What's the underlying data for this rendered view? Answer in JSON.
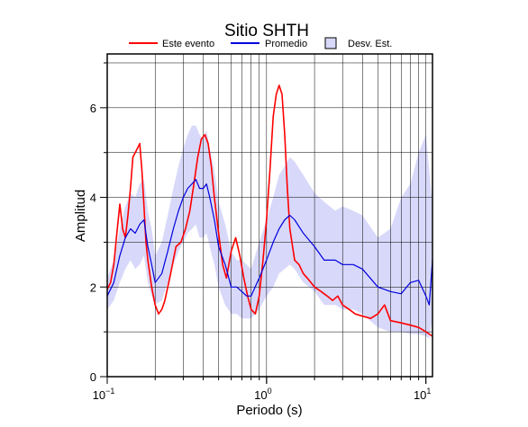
{
  "chart_data": {
    "type": "line",
    "title": "Sitio SHTH",
    "xlabel": "Periodo (s)",
    "ylabel": "Amplitud",
    "x_scale": "log",
    "xlim": [
      0.1,
      11
    ],
    "ylim": [
      0,
      7.2
    ],
    "grid": true,
    "legend_position": "top",
    "x_ticks": [
      {
        "value": 0.1,
        "base": "10",
        "exp": "−1"
      },
      {
        "value": 1,
        "base": "10",
        "exp": "0"
      },
      {
        "value": 10,
        "base": "10",
        "exp": "1"
      }
    ],
    "y_ticks": [
      {
        "value": 0,
        "label": "0"
      },
      {
        "value": 2,
        "label": "2"
      },
      {
        "value": 4,
        "label": "4"
      },
      {
        "value": 6,
        "label": "6"
      }
    ],
    "legend": [
      {
        "label": "Este evento",
        "kind": "line",
        "color": "#ff0000"
      },
      {
        "label": "Promedio",
        "kind": "line",
        "color": "#0000dd"
      },
      {
        "label": "Desv. Est.",
        "kind": "fill",
        "color": "#d8d8fa"
      }
    ],
    "series": [
      {
        "name": "Este evento",
        "color": "#ff0000",
        "x": [
          0.1,
          0.105,
          0.11,
          0.115,
          0.12,
          0.125,
          0.13,
          0.135,
          0.14,
          0.145,
          0.15,
          0.155,
          0.16,
          0.165,
          0.17,
          0.175,
          0.18,
          0.19,
          0.2,
          0.21,
          0.22,
          0.23,
          0.25,
          0.27,
          0.29,
          0.31,
          0.33,
          0.35,
          0.37,
          0.39,
          0.41,
          0.43,
          0.45,
          0.47,
          0.5,
          0.53,
          0.56,
          0.6,
          0.64,
          0.68,
          0.72,
          0.76,
          0.8,
          0.85,
          0.9,
          0.95,
          1.0,
          1.05,
          1.1,
          1.15,
          1.2,
          1.25,
          1.3,
          1.35,
          1.4,
          1.5,
          1.6,
          1.7,
          1.8,
          2.0,
          2.2,
          2.4,
          2.6,
          2.8,
          3.0,
          3.3,
          3.6,
          4.0,
          4.5,
          5.0,
          5.5,
          6.0,
          7.0,
          8.0,
          9.0,
          10.0,
          11.0
        ],
        "values": [
          1.95,
          2.1,
          2.5,
          3.2,
          3.85,
          3.3,
          3.1,
          3.6,
          4.2,
          4.9,
          5.0,
          5.1,
          5.2,
          4.6,
          3.8,
          3.0,
          2.6,
          2.0,
          1.6,
          1.4,
          1.5,
          1.7,
          2.3,
          2.9,
          3.0,
          3.3,
          3.7,
          4.3,
          4.9,
          5.3,
          5.4,
          5.2,
          4.7,
          4.0,
          3.2,
          2.5,
          2.2,
          2.8,
          3.1,
          2.7,
          2.2,
          1.8,
          1.5,
          1.4,
          1.8,
          2.6,
          3.5,
          4.6,
          5.8,
          6.3,
          6.5,
          6.3,
          5.4,
          4.2,
          3.3,
          2.6,
          2.5,
          2.3,
          2.2,
          2.0,
          1.9,
          1.8,
          1.7,
          1.8,
          1.6,
          1.5,
          1.4,
          1.35,
          1.3,
          1.4,
          1.6,
          1.25,
          1.2,
          1.15,
          1.1,
          1.0,
          0.9
        ]
      },
      {
        "name": "Promedio",
        "color": "#0000dd",
        "x": [
          0.1,
          0.11,
          0.12,
          0.13,
          0.14,
          0.15,
          0.16,
          0.17,
          0.18,
          0.19,
          0.2,
          0.22,
          0.24,
          0.26,
          0.28,
          0.3,
          0.32,
          0.34,
          0.36,
          0.38,
          0.4,
          0.42,
          0.44,
          0.47,
          0.5,
          0.55,
          0.6,
          0.65,
          0.7,
          0.75,
          0.8,
          0.9,
          1.0,
          1.1,
          1.2,
          1.3,
          1.4,
          1.5,
          1.7,
          2.0,
          2.3,
          2.7,
          3.0,
          3.5,
          4.0,
          5.0,
          6.0,
          7.0,
          8.0,
          9.0,
          10.0,
          10.5,
          11.0
        ],
        "values": [
          1.8,
          2.1,
          2.7,
          3.1,
          3.3,
          3.2,
          3.4,
          3.5,
          2.9,
          2.5,
          2.1,
          2.3,
          2.8,
          3.3,
          3.7,
          4.0,
          4.2,
          4.3,
          4.4,
          4.2,
          4.2,
          4.3,
          4.0,
          3.5,
          2.9,
          2.5,
          2.0,
          2.0,
          1.9,
          1.8,
          1.8,
          2.2,
          2.6,
          3.0,
          3.3,
          3.5,
          3.6,
          3.5,
          3.2,
          2.9,
          2.6,
          2.6,
          2.5,
          2.5,
          2.4,
          2.0,
          1.9,
          1.85,
          2.1,
          2.15,
          1.8,
          1.6,
          2.6
        ]
      }
    ],
    "band": {
      "name": "Desv. Est.",
      "color": "#d8d8fa",
      "x": [
        0.1,
        0.11,
        0.12,
        0.13,
        0.14,
        0.15,
        0.16,
        0.17,
        0.18,
        0.19,
        0.2,
        0.22,
        0.24,
        0.26,
        0.28,
        0.3,
        0.32,
        0.34,
        0.36,
        0.38,
        0.4,
        0.42,
        0.44,
        0.47,
        0.5,
        0.55,
        0.6,
        0.65,
        0.7,
        0.75,
        0.8,
        0.9,
        1.0,
        1.1,
        1.2,
        1.3,
        1.4,
        1.5,
        1.7,
        2.0,
        2.3,
        2.7,
        3.0,
        3.5,
        4.0,
        5.0,
        6.0,
        7.0,
        8.0,
        9.0,
        10.0,
        10.5,
        11.0
      ],
      "lower": [
        1.5,
        1.7,
        2.1,
        2.4,
        2.6,
        2.4,
        2.5,
        2.7,
        2.1,
        1.8,
        1.6,
        1.7,
        2.1,
        2.5,
        2.8,
        3.0,
        3.2,
        3.3,
        3.4,
        3.1,
        3.1,
        3.2,
        2.9,
        2.5,
        2.0,
        1.6,
        1.4,
        1.4,
        1.3,
        1.3,
        1.3,
        1.5,
        1.8,
        2.0,
        2.3,
        2.4,
        2.5,
        2.4,
        2.1,
        1.9,
        1.6,
        1.6,
        1.5,
        1.5,
        1.4,
        1.1,
        1.0,
        1.0,
        0.95,
        0.95,
        0.9,
        0.85,
        1.3
      ],
      "upper": [
        2.2,
        2.6,
        3.3,
        3.8,
        4.1,
        4.0,
        4.3,
        4.4,
        3.7,
        3.3,
        2.7,
        3.0,
        3.6,
        4.2,
        4.7,
        5.1,
        5.4,
        5.6,
        5.6,
        5.4,
        5.3,
        5.5,
        5.1,
        4.6,
        3.9,
        3.4,
        2.8,
        2.6,
        2.6,
        2.5,
        2.4,
        3.0,
        3.5,
        4.0,
        4.5,
        4.7,
        4.9,
        4.8,
        4.5,
        4.1,
        3.9,
        3.7,
        3.8,
        3.7,
        3.6,
        3.1,
        3.3,
        4.0,
        4.3,
        5.0,
        5.4,
        4.6,
        3.8
      ]
    }
  }
}
